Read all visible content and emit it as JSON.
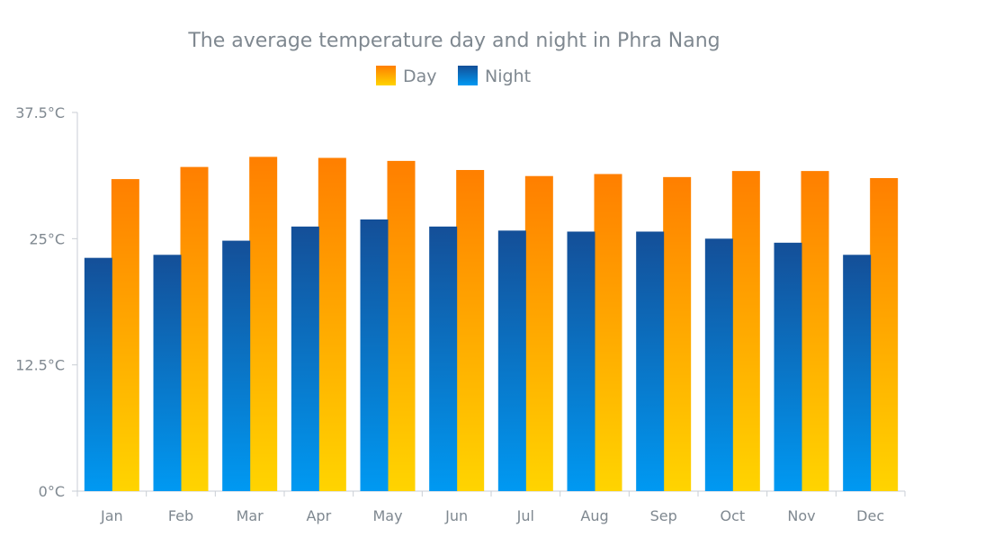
{
  "chart_data": {
    "type": "bar",
    "title": "The average temperature day and night in Phra Nang",
    "categories": [
      "Jan",
      "Feb",
      "Mar",
      "Apr",
      "May",
      "Jun",
      "Jul",
      "Aug",
      "Sep",
      "Oct",
      "Nov",
      "Dec"
    ],
    "series": [
      {
        "name": "Day",
        "values": [
          30.9,
          32.1,
          33.1,
          33.0,
          32.7,
          31.8,
          31.2,
          31.4,
          31.1,
          31.7,
          31.7,
          31.0
        ],
        "color_top": "#ff7f00",
        "color_bottom": "#ffd400"
      },
      {
        "name": "Night",
        "values": [
          23.1,
          23.4,
          24.8,
          26.2,
          26.9,
          26.2,
          25.8,
          25.7,
          25.7,
          25.0,
          24.6,
          23.4
        ],
        "color_top": "#144f98",
        "color_bottom": "#0099f2"
      }
    ],
    "ylim": [
      0,
      37.5
    ],
    "yticks": [
      0,
      12.5,
      25,
      37.5
    ],
    "ytick_labels": [
      "0°C",
      "12.5°C",
      "25°C",
      "37.5°C"
    ],
    "xlabel": "",
    "ylabel": "",
    "legend_position": "top-center",
    "grid": false
  }
}
